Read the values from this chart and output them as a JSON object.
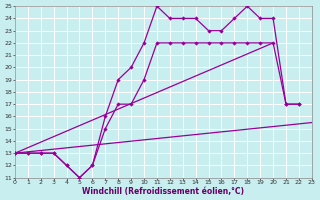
{
  "xlabel": "Windchill (Refroidissement éolien,°C)",
  "xlim": [
    0,
    23
  ],
  "ylim": [
    11,
    25
  ],
  "xticks": [
    0,
    1,
    2,
    3,
    4,
    5,
    6,
    7,
    8,
    9,
    10,
    11,
    12,
    13,
    14,
    15,
    16,
    17,
    18,
    19,
    20,
    21,
    22,
    23
  ],
  "yticks": [
    11,
    12,
    13,
    14,
    15,
    16,
    17,
    18,
    19,
    20,
    21,
    22,
    23,
    24,
    25
  ],
  "bg_color": "#c8eef0",
  "grid_color": "#ffffff",
  "line_color": "#990099",
  "s1x": [
    0,
    1,
    2,
    3,
    4,
    5,
    6,
    7,
    8,
    9,
    10,
    11,
    12,
    13,
    14,
    15,
    16,
    17,
    18,
    19,
    20,
    21,
    22
  ],
  "s1y": [
    13,
    13,
    13,
    13,
    12,
    11,
    12,
    16,
    19,
    20,
    22,
    25,
    24,
    24,
    24,
    23,
    23,
    24,
    25,
    24,
    24,
    17,
    17
  ],
  "s2x": [
    0,
    1,
    2,
    3,
    4,
    5,
    6,
    7,
    8,
    9,
    10,
    11,
    12,
    13,
    14,
    15,
    16,
    17,
    18,
    19,
    20,
    21,
    22
  ],
  "s2y": [
    13,
    13,
    13,
    13,
    12,
    11,
    12,
    15,
    17,
    17,
    19,
    22,
    22,
    22,
    22,
    22,
    22,
    22,
    22,
    22,
    22,
    17,
    17
  ],
  "s3x": [
    0,
    23
  ],
  "s3y": [
    13,
    15.5
  ],
  "s4x": [
    0,
    20
  ],
  "s4y": [
    13,
    22
  ],
  "marker": "D",
  "markersize": 2.2,
  "linewidth": 0.9,
  "tick_fontsize": 4.5,
  "xlabel_fontsize": 5.5
}
